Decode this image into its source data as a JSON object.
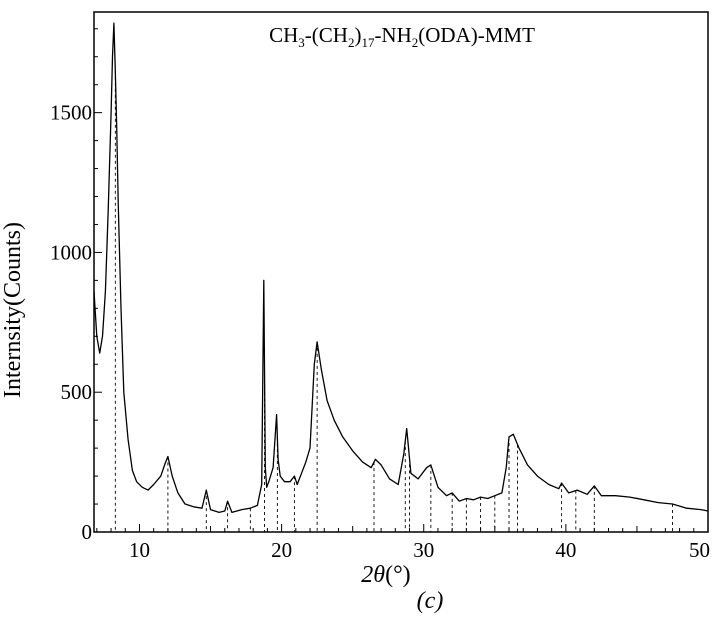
{
  "chart_data": {
    "type": "line",
    "title_parts": [
      "CH",
      "3",
      "-(CH",
      "2",
      ")",
      "17",
      "-NH",
      "2",
      "(ODA)-MMT"
    ],
    "xlabel_symbol": "2θ",
    "xlabel_unit": "(°)",
    "ylabel": "Internsity(Counts)",
    "caption": "(c)",
    "xlim": [
      6.8,
      50
    ],
    "ylim": [
      0,
      1860
    ],
    "x_ticks": [
      10,
      20,
      30,
      40,
      50
    ],
    "y_ticks": [
      0,
      500,
      1000,
      1500
    ],
    "grid": false,
    "line_color": "#000000",
    "series": [
      {
        "x": [
          6.8,
          7.0,
          7.2,
          7.4,
          7.6,
          7.8,
          8.0,
          8.1,
          8.2,
          8.3,
          8.4,
          8.5,
          8.7,
          8.9,
          9.2,
          9.5,
          9.8,
          10.2,
          10.6,
          11.0,
          11.5,
          11.8,
          12.0,
          12.3,
          12.7,
          13.2,
          13.8,
          14.4,
          14.7,
          15.0,
          15.6,
          16.0,
          16.2,
          16.5,
          17.2,
          17.8,
          18.3,
          18.6,
          18.75,
          18.85,
          18.95,
          19.1,
          19.4,
          19.65,
          19.75,
          19.9,
          20.2,
          20.6,
          20.9,
          21.1,
          21.4,
          21.7,
          22.0,
          22.3,
          22.5,
          22.8,
          23.2,
          23.7,
          24.3,
          25.0,
          25.7,
          26.3,
          26.6,
          27.0,
          27.6,
          28.2,
          28.6,
          28.8,
          29.1,
          29.6,
          30.2,
          30.5,
          31.0,
          31.6,
          32.0,
          32.5,
          33.0,
          33.5,
          34.0,
          34.5,
          35.0,
          35.5,
          35.8,
          36.0,
          36.3,
          36.7,
          37.3,
          38.0,
          38.8,
          39.5,
          39.7,
          40.2,
          40.8,
          41.5,
          42.0,
          42.5,
          43.5,
          44.5,
          45.5,
          46.5,
          47.5,
          48.5,
          49.5,
          50.0
        ],
        "y": [
          860,
          700,
          640,
          700,
          860,
          1150,
          1500,
          1700,
          1820,
          1650,
          1450,
          1180,
          800,
          500,
          330,
          220,
          180,
          160,
          150,
          170,
          200,
          245,
          270,
          200,
          140,
          100,
          90,
          85,
          150,
          80,
          70,
          75,
          110,
          70,
          80,
          85,
          95,
          170,
          900,
          230,
          160,
          180,
          230,
          420,
          260,
          200,
          180,
          180,
          200,
          170,
          210,
          250,
          300,
          600,
          680,
          580,
          470,
          400,
          340,
          290,
          250,
          230,
          260,
          240,
          190,
          170,
          280,
          370,
          210,
          190,
          230,
          240,
          160,
          130,
          140,
          110,
          120,
          115,
          125,
          120,
          130,
          140,
          230,
          340,
          350,
          300,
          240,
          200,
          170,
          155,
          175,
          140,
          150,
          135,
          165,
          130,
          130,
          125,
          115,
          105,
          100,
          85,
          80,
          75
        ]
      }
    ],
    "peak_markers_x": [
      8.3,
      12.0,
      14.7,
      16.2,
      17.8,
      18.8,
      19.7,
      20.9,
      22.5,
      26.5,
      28.7,
      29.0,
      30.5,
      32.0,
      33.0,
      34.0,
      35.0,
      36.0,
      36.6,
      39.7,
      40.7,
      42.0,
      47.5
    ]
  }
}
